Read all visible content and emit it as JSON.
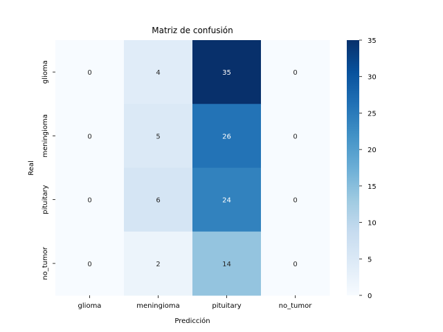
{
  "chart_data": {
    "type": "heatmap",
    "title": "Matriz de confusión",
    "xlabel": "Predicción",
    "ylabel": "Real",
    "x_categories": [
      "glioma",
      "meningioma",
      "pituitary",
      "no_tumor"
    ],
    "y_categories": [
      "glioma",
      "meningioma",
      "pituitary",
      "no_tumor"
    ],
    "values": [
      [
        0,
        4,
        35,
        0
      ],
      [
        0,
        5,
        26,
        0
      ],
      [
        0,
        6,
        24,
        0
      ],
      [
        0,
        2,
        14,
        0
      ]
    ],
    "colormap": "Blues",
    "colorbar": {
      "range": [
        0,
        35
      ],
      "ticks": [
        0,
        5,
        10,
        15,
        20,
        25,
        30,
        35
      ]
    },
    "annotated": true,
    "grid": false,
    "legend": "colorbar-right"
  }
}
